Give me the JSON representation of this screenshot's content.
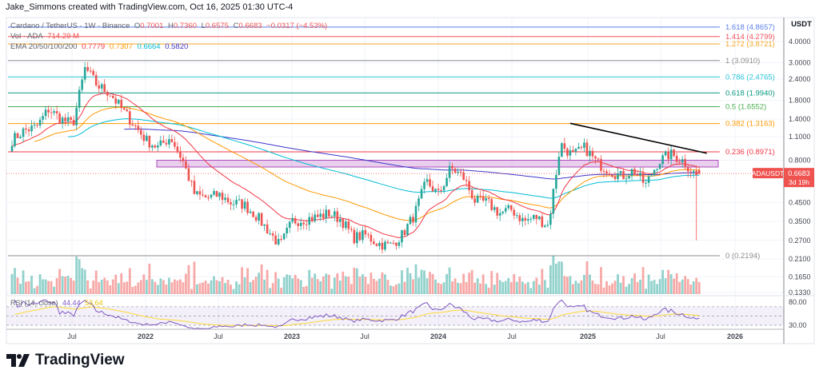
{
  "header": {
    "credit": "Jake_Simmons created with TradingView.com, Oct 16, 2025 01:30 UTC-4"
  },
  "legend": {
    "symbol": "Cardano / TetherUS · 1W · Binance",
    "o_label": "O",
    "o": "0.7001",
    "h_label": "H",
    "h": "0.7360",
    "l_label": "L",
    "l": "0.6575",
    "c_label": "C",
    "c": "0.6683",
    "change": "−0.0317 (−4.53%)",
    "vol_label": "Vol · ADA",
    "vol": "714.29 M",
    "ema_label": "EMA 20/50/100/200",
    "ema_values": [
      "0.7779",
      "0.7307",
      "0.6664",
      "0.5820"
    ],
    "rsi_label": "RSI (14, close)",
    "rsi": "44.44",
    "rsi_ma": "53.64"
  },
  "colors": {
    "up": "#26a69a",
    "down": "#ef5350",
    "ema20": "#f23645",
    "ema50": "#ff9800",
    "ema100": "#00bcd4",
    "ema200": "#3f37c9",
    "rsi": "#7e57c2",
    "rsi_ma": "#fdd835",
    "zone": "#ce93d8"
  },
  "logo": {
    "text": "TradingView"
  },
  "chart_data": {
    "type": "candlestick",
    "symbol": "ADAUSDT",
    "timeframe": "1W",
    "y_scale": "log",
    "y_axis_unit": "USDT",
    "y_ticks": [
      "4.0000",
      "3.0000",
      "2.4000",
      "1.8000",
      "1.4000",
      "1.1000",
      "0.8000",
      "0.4500",
      "0.3500",
      "0.2700",
      "0.2100",
      "0.1650",
      "0.1330"
    ],
    "x_ticks": [
      "Jul",
      "2022",
      "Jul",
      "2023",
      "Jul",
      "2024",
      "Jul",
      "2025",
      "Jul",
      "2026"
    ],
    "approx_monthly_closes": {
      "start": "2021-02",
      "values": [
        1.05,
        1.2,
        1.25,
        1.6,
        1.4,
        1.3,
        2.8,
        2.2,
        2.0,
        1.6,
        1.3,
        1.05,
        0.95,
        1.1,
        0.8,
        0.5,
        0.48,
        0.5,
        0.45,
        0.44,
        0.38,
        0.31,
        0.25,
        0.35,
        0.36,
        0.37,
        0.39,
        0.36,
        0.28,
        0.29,
        0.26,
        0.25,
        0.29,
        0.38,
        0.6,
        0.5,
        0.72,
        0.64,
        0.46,
        0.45,
        0.39,
        0.41,
        0.35,
        0.37,
        0.33,
        1.0,
        0.85,
        0.95,
        0.77,
        0.7,
        0.64,
        0.7,
        0.57,
        0.78,
        0.87,
        0.8,
        0.6683
      ]
    },
    "last_candle": {
      "open": 0.7001,
      "high": 0.736,
      "low": 0.6575,
      "close": 0.6683
    },
    "previous_week_low": 0.27,
    "price_label": {
      "symbol": "ADAUSDT",
      "value": "0.6683",
      "countdown": "3d 19h"
    },
    "fib_levels": [
      {
        "ratio": "1.618",
        "price": 4.8657,
        "label": "1.618 (4.8657)",
        "color": "#5b7fe8"
      },
      {
        "ratio": "1.414",
        "price": 4.2799,
        "label": "1.414 (4.2799)",
        "color": "#f0505a"
      },
      {
        "ratio": "1.272",
        "price": 3.8721,
        "label": "1.272 (3.8721)",
        "color": "#f5a623"
      },
      {
        "ratio": "1",
        "price": 3.091,
        "label": "1 (3.0910)",
        "color": "#8c8c8c"
      },
      {
        "ratio": "0.786",
        "price": 2.4765,
        "label": "0.786 (2.4765)",
        "color": "#26c6da"
      },
      {
        "ratio": "0.618",
        "price": 1.994,
        "label": "0.618 (1.9940)",
        "color": "#089981"
      },
      {
        "ratio": "0.5",
        "price": 1.6552,
        "label": "0.5 (1.6552)",
        "color": "#4caf50"
      },
      {
        "ratio": "0.382",
        "price": 1.3163,
        "label": "0.382 (1.3163)",
        "color": "#ff9800"
      },
      {
        "ratio": "0.236",
        "price": 0.8971,
        "label": "0.236 (0.8971)",
        "color": "#f23645"
      },
      {
        "ratio": "0",
        "price": 0.2194,
        "label": "0 (0.2194)",
        "color": "#8c8c8c"
      }
    ],
    "support_zone": {
      "low": 0.73,
      "high": 0.8,
      "from": "2021-12",
      "to": "2025-11"
    },
    "trendline": {
      "from": {
        "date": "2024-11-25",
        "price": 1.32
      },
      "to": {
        "date": "2025-11-01",
        "price": 0.88
      }
    },
    "rsi_ticks": [
      "80.00",
      "30.00"
    ]
  }
}
